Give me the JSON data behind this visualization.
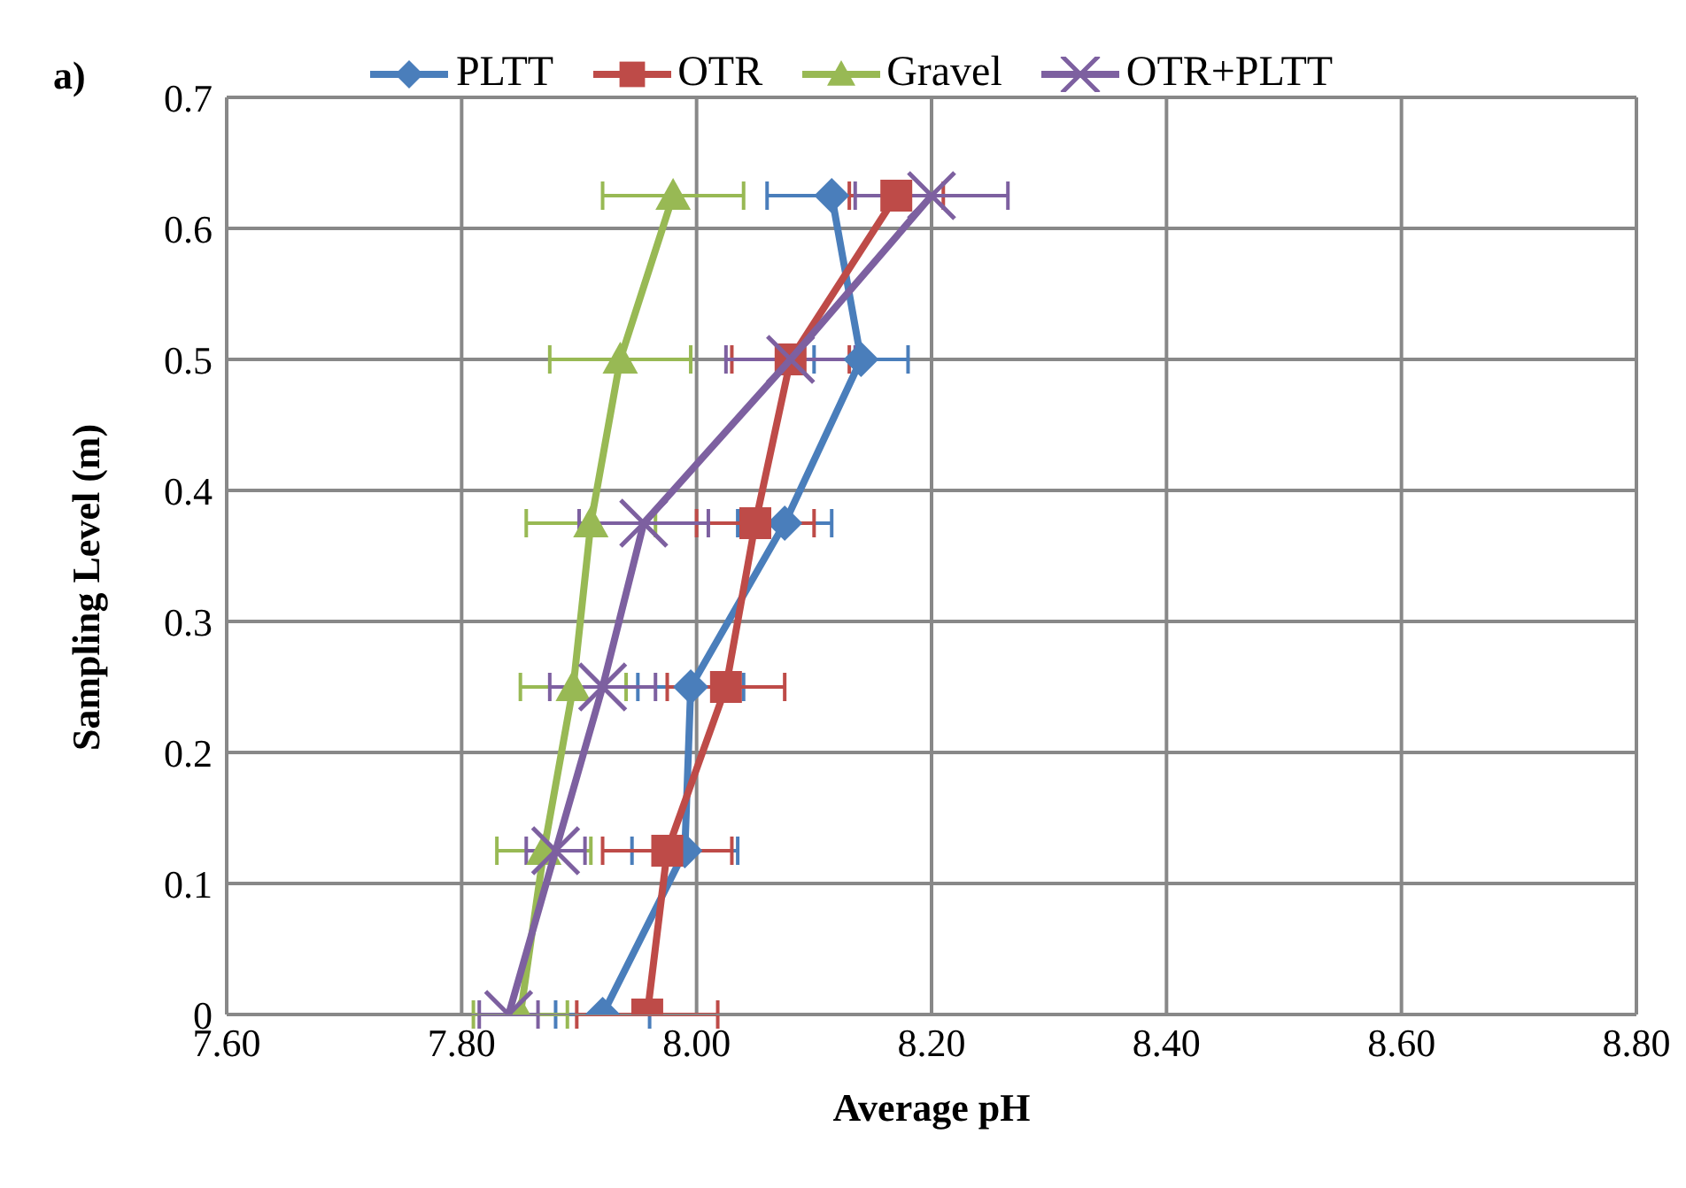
{
  "chart_data": {
    "type": "line",
    "xlabel": "Average pH",
    "ylabel": "Sampling Level (m)",
    "annotations": [
      "a)"
    ],
    "xlim": [
      7.6,
      8.8
    ],
    "xticks": [
      {
        "value": 7.6,
        "label": "7.60"
      },
      {
        "value": 7.8,
        "label": "7.80"
      },
      {
        "value": 8.0,
        "label": "8.00"
      },
      {
        "value": 8.2,
        "label": "8.20"
      },
      {
        "value": 8.4,
        "label": "8.40"
      },
      {
        "value": 8.6,
        "label": "8.60"
      },
      {
        "value": 8.8,
        "label": "8.80"
      }
    ],
    "ylim": [
      0,
      0.7
    ],
    "yticks": [
      0,
      0.1,
      0.2,
      0.3,
      0.4,
      0.5,
      0.6,
      0.7
    ],
    "grid": true,
    "legend": "top",
    "line_style": "solid",
    "series": [
      {
        "name": "PLTT",
        "color": "#4a7ebb",
        "marker": "diamond",
        "x": [
          7.92,
          7.99,
          7.995,
          8.075,
          8.14,
          8.115
        ],
        "values": [
          0,
          0.125,
          0.25,
          0.375,
          0.5,
          0.625
        ],
        "xerrors": [
          0.04,
          0.045,
          0.045,
          0.04,
          0.04,
          0.055
        ]
      },
      {
        "name": "OTR",
        "color": "#be4b48",
        "marker": "square",
        "x": [
          7.958,
          7.975,
          8.025,
          8.05,
          8.08,
          8.17
        ],
        "values": [
          0,
          0.125,
          0.25,
          0.375,
          0.5,
          0.625
        ],
        "xerrors": [
          0.06,
          0.055,
          0.05,
          0.05,
          0.05,
          0.04
        ]
      },
      {
        "name": "Gravel",
        "color": "#98b954",
        "marker": "triangle",
        "x": [
          7.85,
          7.87,
          7.895,
          7.91,
          7.935,
          7.98
        ],
        "values": [
          0,
          0.125,
          0.25,
          0.375,
          0.5,
          0.625
        ],
        "xerrors": [
          0.04,
          0.04,
          0.045,
          0.055,
          0.06,
          0.06
        ]
      },
      {
        "name": "OTR+PLTT",
        "color": "#7d60a0",
        "marker": "cross",
        "x": [
          7.84,
          7.88,
          7.92,
          7.955,
          8.08,
          8.2
        ],
        "values": [
          0,
          0.125,
          0.25,
          0.375,
          0.5,
          0.625
        ],
        "xerrors": [
          0.025,
          0.025,
          0.045,
          0.055,
          0.055,
          0.065
        ]
      }
    ]
  }
}
